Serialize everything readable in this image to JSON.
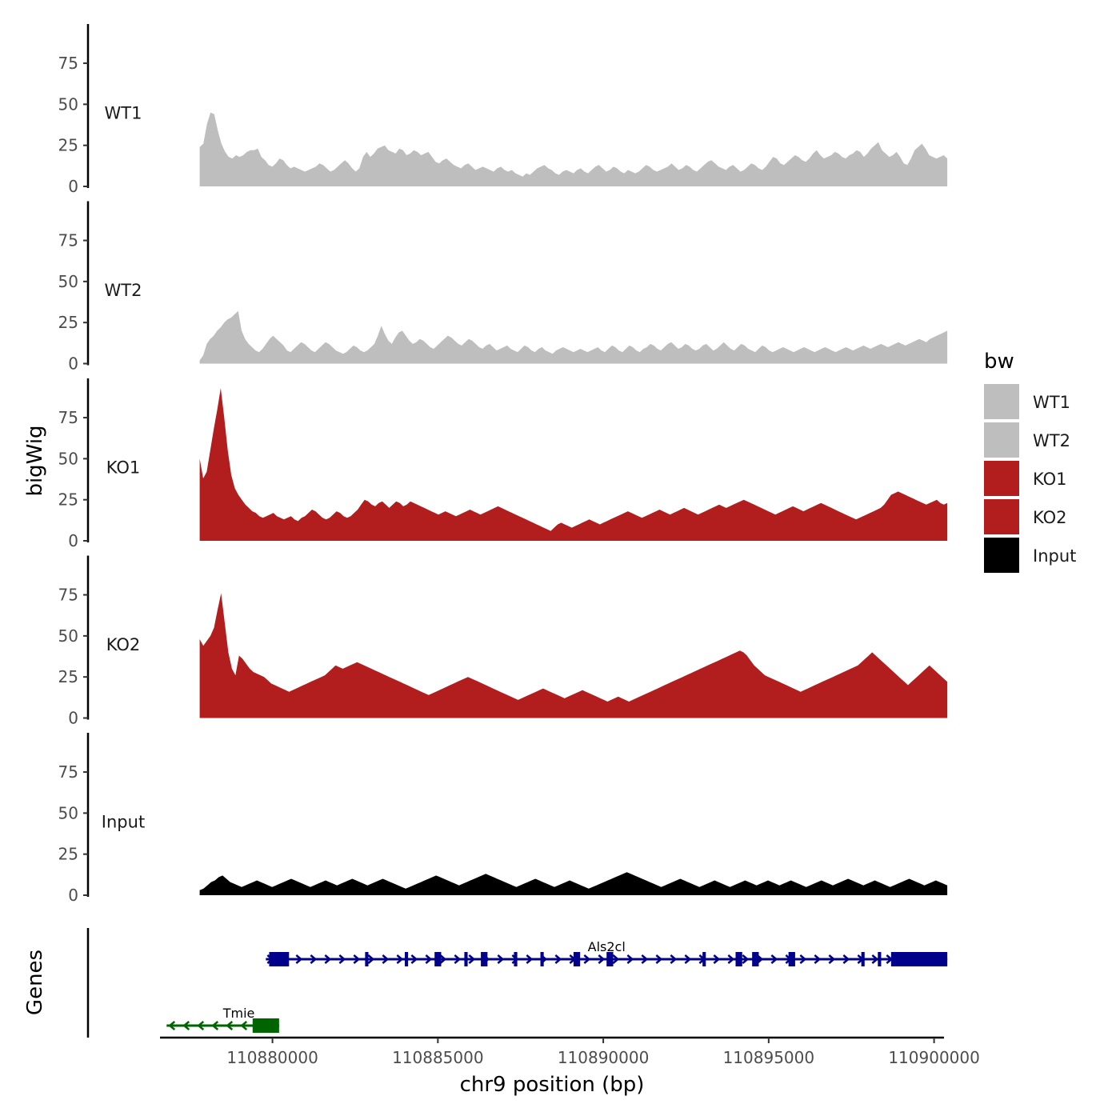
{
  "chart_data": {
    "type": "area",
    "title": "",
    "xlabel": "chr9 position (bp)",
    "ylabel": "bigWig",
    "genes_label": "Genes",
    "xlim": [
      110876600,
      110900300
    ],
    "x_ticks": [
      110880000,
      110885000,
      110890000,
      110895000,
      110900000
    ],
    "x_tick_labels": [
      "110880000",
      "110885000",
      "110890000",
      "110895000",
      "110900000"
    ],
    "ylim": [
      0,
      95
    ],
    "y_ticks": [
      0,
      25,
      50,
      75
    ],
    "y_tick_labels": [
      "0",
      "25",
      "50",
      "75"
    ],
    "grid": false,
    "legend_position": "right",
    "legend_title": "bw",
    "track_start": 110877800,
    "track_end": 110900400,
    "series": [
      {
        "name": "WT1",
        "color": "#bebebe",
        "values": [
          24,
          26,
          38,
          45,
          44,
          34,
          26,
          21,
          18,
          17,
          19,
          18,
          19,
          21,
          22,
          22,
          23,
          18,
          16,
          13,
          12,
          14,
          17,
          16,
          13,
          11,
          12,
          11,
          10,
          9,
          10,
          11,
          12,
          14,
          13,
          11,
          9,
          10,
          12,
          14,
          16,
          14,
          11,
          9,
          11,
          18,
          21,
          18,
          20,
          23,
          24,
          25,
          22,
          21,
          20,
          23,
          22,
          19,
          20,
          22,
          21,
          19,
          20,
          21,
          18,
          15,
          14,
          16,
          17,
          15,
          13,
          12,
          11,
          13,
          14,
          12,
          10,
          11,
          12,
          11,
          10,
          9,
          11,
          12,
          10,
          9,
          10,
          8,
          7,
          6,
          8,
          7,
          9,
          11,
          12,
          13,
          11,
          10,
          8,
          7,
          9,
          10,
          9,
          8,
          10,
          11,
          9,
          8,
          10,
          12,
          13,
          11,
          9,
          10,
          12,
          11,
          9,
          8,
          10,
          9,
          8,
          9,
          11,
          13,
          12,
          10,
          9,
          10,
          11,
          12,
          14,
          12,
          10,
          11,
          13,
          12,
          10,
          9,
          11,
          13,
          15,
          16,
          14,
          12,
          11,
          10,
          12,
          13,
          11,
          9,
          10,
          12,
          14,
          13,
          11,
          10,
          12,
          15,
          18,
          17,
          14,
          13,
          15,
          17,
          19,
          18,
          16,
          15,
          17,
          20,
          22,
          19,
          17,
          18,
          19,
          21,
          20,
          18,
          17,
          19,
          20,
          22,
          21,
          18,
          20,
          23,
          25,
          27,
          22,
          20,
          18,
          19,
          21,
          18,
          14,
          13,
          17,
          22,
          24,
          26,
          23,
          19,
          18,
          17,
          18,
          19,
          17
        ]
      },
      {
        "name": "WT2",
        "color": "#bebebe",
        "values": [
          2,
          5,
          12,
          15,
          17,
          20,
          22,
          25,
          27,
          28,
          30,
          32,
          20,
          15,
          12,
          10,
          8,
          7,
          9,
          12,
          15,
          17,
          15,
          13,
          11,
          8,
          7,
          9,
          11,
          13,
          12,
          10,
          8,
          7,
          9,
          11,
          13,
          12,
          10,
          8,
          7,
          6,
          7,
          9,
          11,
          10,
          8,
          7,
          8,
          10,
          12,
          17,
          23,
          18,
          14,
          12,
          16,
          19,
          20,
          17,
          14,
          12,
          13,
          15,
          14,
          12,
          10,
          9,
          11,
          13,
          15,
          17,
          16,
          14,
          12,
          11,
          13,
          15,
          14,
          12,
          10,
          9,
          11,
          12,
          10,
          8,
          9,
          10,
          11,
          9,
          8,
          7,
          9,
          11,
          10,
          8,
          7,
          9,
          10,
          8,
          7,
          6,
          8,
          9,
          10,
          9,
          8,
          7,
          8,
          9,
          8,
          7,
          8,
          9,
          10,
          8,
          7,
          9,
          11,
          10,
          8,
          7,
          9,
          11,
          10,
          8,
          7,
          9,
          10,
          12,
          11,
          9,
          8,
          10,
          12,
          13,
          11,
          9,
          10,
          12,
          11,
          9,
          8,
          9,
          11,
          12,
          10,
          8,
          9,
          11,
          13,
          11,
          9,
          8,
          10,
          12,
          11,
          9,
          8,
          7,
          9,
          11,
          10,
          8,
          7,
          8,
          9,
          10,
          9,
          8,
          7,
          8,
          9,
          10,
          9,
          8,
          7,
          8,
          9,
          10,
          9,
          8,
          7,
          8,
          9,
          10,
          9,
          8,
          9,
          10,
          11,
          10,
          9,
          10,
          11,
          12,
          11,
          10,
          11,
          12,
          13,
          12,
          11,
          12,
          13,
          14,
          15,
          14,
          13,
          15,
          16,
          17,
          18,
          19,
          20
        ]
      },
      {
        "name": "KO1",
        "color": "#b21e1e",
        "values": [
          50,
          38,
          42,
          55,
          68,
          80,
          93,
          75,
          55,
          40,
          32,
          28,
          25,
          22,
          20,
          18,
          17,
          15,
          14,
          15,
          16,
          17,
          15,
          14,
          13,
          14,
          15,
          13,
          12,
          14,
          15,
          17,
          19,
          18,
          16,
          14,
          13,
          14,
          16,
          18,
          17,
          15,
          14,
          15,
          17,
          19,
          22,
          25,
          24,
          22,
          21,
          23,
          24,
          22,
          20,
          22,
          24,
          23,
          21,
          22,
          24,
          23,
          22,
          21,
          20,
          19,
          18,
          17,
          16,
          17,
          18,
          17,
          16,
          15,
          16,
          17,
          18,
          19,
          18,
          17,
          16,
          17,
          18,
          19,
          20,
          21,
          20,
          19,
          18,
          17,
          16,
          15,
          14,
          13,
          12,
          11,
          10,
          9,
          8,
          7,
          6,
          8,
          10,
          11,
          10,
          9,
          8,
          9,
          10,
          11,
          12,
          13,
          12,
          11,
          10,
          11,
          12,
          13,
          14,
          15,
          16,
          17,
          18,
          17,
          16,
          15,
          14,
          15,
          16,
          17,
          18,
          19,
          18,
          17,
          16,
          17,
          18,
          19,
          20,
          19,
          18,
          17,
          16,
          17,
          18,
          19,
          20,
          21,
          22,
          21,
          20,
          21,
          22,
          23,
          24,
          25,
          24,
          23,
          22,
          21,
          20,
          19,
          18,
          17,
          16,
          17,
          18,
          19,
          20,
          21,
          20,
          19,
          18,
          19,
          20,
          21,
          22,
          23,
          22,
          21,
          20,
          19,
          18,
          17,
          16,
          15,
          14,
          13,
          14,
          15,
          16,
          17,
          18,
          19,
          20,
          22,
          25,
          28,
          29,
          30,
          29,
          28,
          27,
          26,
          25,
          24,
          23,
          22,
          23,
          24,
          25,
          23,
          22,
          23
        ]
      },
      {
        "name": "KO2",
        "color": "#b21e1e",
        "values": [
          48,
          44,
          47,
          50,
          55,
          66,
          76,
          58,
          40,
          30,
          26,
          38,
          36,
          33,
          30,
          28,
          27,
          26,
          25,
          23,
          21,
          20,
          19,
          18,
          17,
          16,
          17,
          18,
          19,
          20,
          21,
          22,
          23,
          24,
          25,
          26,
          28,
          30,
          32,
          31,
          30,
          31,
          32,
          33,
          34,
          33,
          32,
          31,
          30,
          29,
          28,
          27,
          26,
          25,
          24,
          23,
          22,
          21,
          20,
          19,
          18,
          17,
          16,
          15,
          14,
          15,
          16,
          17,
          18,
          19,
          20,
          21,
          22,
          23,
          24,
          25,
          24,
          23,
          22,
          21,
          20,
          19,
          18,
          17,
          16,
          15,
          14,
          13,
          12,
          11,
          12,
          13,
          14,
          15,
          16,
          17,
          18,
          17,
          16,
          15,
          14,
          13,
          12,
          13,
          14,
          15,
          16,
          17,
          16,
          15,
          14,
          13,
          12,
          11,
          10,
          11,
          12,
          13,
          12,
          11,
          10,
          11,
          12,
          13,
          14,
          15,
          16,
          17,
          18,
          19,
          20,
          21,
          22,
          23,
          24,
          25,
          26,
          27,
          28,
          29,
          30,
          31,
          32,
          33,
          34,
          35,
          36,
          37,
          38,
          39,
          40,
          41,
          40,
          38,
          35,
          32,
          30,
          28,
          26,
          25,
          24,
          23,
          22,
          21,
          20,
          19,
          18,
          17,
          16,
          17,
          18,
          19,
          20,
          21,
          22,
          23,
          24,
          25,
          26,
          27,
          28,
          29,
          30,
          31,
          32,
          34,
          36,
          38,
          40,
          38,
          36,
          34,
          32,
          30,
          28,
          26,
          24,
          22,
          20,
          22,
          24,
          26,
          28,
          30,
          32,
          30,
          28,
          26,
          24,
          22
        ]
      },
      {
        "name": "Input",
        "color": "#000000",
        "values": [
          3,
          4,
          6,
          8,
          9,
          11,
          12,
          10,
          8,
          7,
          6,
          5,
          6,
          7,
          8,
          9,
          8,
          7,
          6,
          5,
          6,
          7,
          8,
          9,
          10,
          9,
          8,
          7,
          6,
          5,
          6,
          7,
          8,
          9,
          8,
          7,
          6,
          7,
          8,
          9,
          10,
          9,
          8,
          7,
          6,
          7,
          8,
          9,
          10,
          9,
          8,
          7,
          6,
          5,
          4,
          5,
          6,
          7,
          8,
          9,
          10,
          11,
          12,
          11,
          10,
          9,
          8,
          7,
          6,
          7,
          8,
          9,
          10,
          11,
          12,
          13,
          12,
          11,
          10,
          9,
          8,
          7,
          6,
          5,
          6,
          7,
          8,
          9,
          10,
          9,
          8,
          7,
          6,
          5,
          6,
          7,
          8,
          9,
          8,
          7,
          6,
          5,
          4,
          5,
          6,
          7,
          8,
          9,
          10,
          11,
          12,
          13,
          14,
          13,
          12,
          11,
          10,
          9,
          8,
          7,
          6,
          5,
          6,
          7,
          8,
          9,
          10,
          9,
          8,
          7,
          6,
          5,
          6,
          7,
          8,
          9,
          8,
          7,
          6,
          5,
          6,
          7,
          8,
          9,
          8,
          7,
          6,
          7,
          8,
          9,
          8,
          7,
          6,
          7,
          8,
          9,
          8,
          7,
          6,
          5,
          6,
          7,
          8,
          9,
          8,
          7,
          6,
          7,
          8,
          9,
          10,
          9,
          8,
          7,
          6,
          7,
          8,
          9,
          8,
          7,
          6,
          5,
          6,
          7,
          8,
          9,
          10,
          9,
          8,
          7,
          6,
          7,
          8,
          9,
          8,
          7,
          6
        ]
      }
    ],
    "genes": [
      {
        "name": "Tmie",
        "color": "#006400",
        "strand": "-",
        "start": 110876800,
        "end": 110880200,
        "exons": [
          [
            110879400,
            110880200
          ]
        ]
      },
      {
        "name": "Als2cl",
        "color": "#00008b",
        "strand": "+",
        "start": 110879800,
        "end": 110900400,
        "exons": [
          [
            110879900,
            110880500
          ],
          [
            110882800,
            110882900
          ],
          [
            110884000,
            110884100
          ],
          [
            110884900,
            110885100
          ],
          [
            110885800,
            110885900
          ],
          [
            110886300,
            110886500
          ],
          [
            110887300,
            110887400
          ],
          [
            110888100,
            110888200
          ],
          [
            110889100,
            110889300
          ],
          [
            110890100,
            110890300
          ],
          [
            110893000,
            110893100
          ],
          [
            110894000,
            110894200
          ],
          [
            110894500,
            110894700
          ],
          [
            110895600,
            110895800
          ],
          [
            110897800,
            110897900
          ],
          [
            110898300,
            110898400
          ],
          [
            110898700,
            110900400
          ]
        ]
      }
    ]
  }
}
